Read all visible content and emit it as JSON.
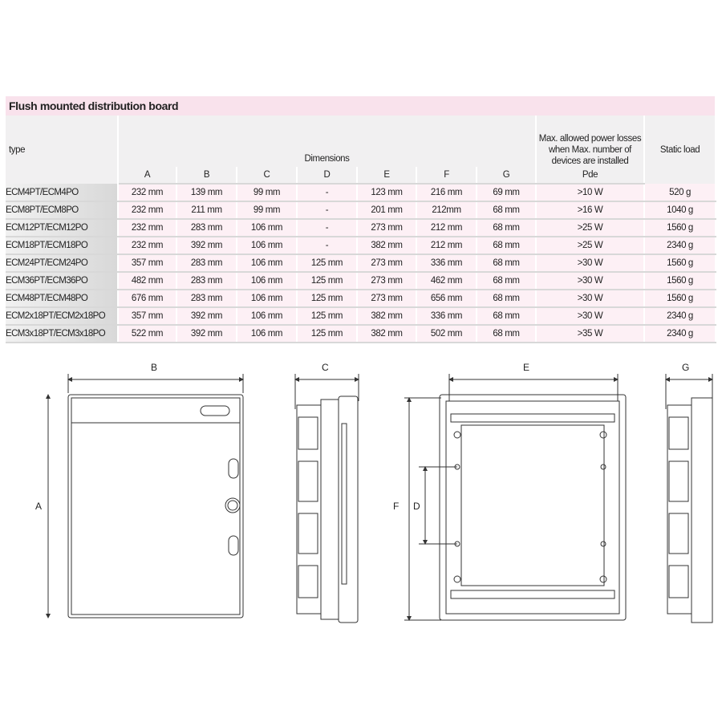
{
  "title": "Flush mounted distribution board",
  "headers": {
    "type": "type",
    "dimensions": "Dimensions",
    "cols": [
      "A",
      "B",
      "C",
      "D",
      "E",
      "F",
      "G"
    ],
    "power": "Max. allowed power losses when Max. number of devices are installed",
    "pde": "Pde",
    "static": "Static load"
  },
  "rows": [
    [
      "ECM4PT/ECM4PO",
      "232 mm",
      "139 mm",
      "99 mm",
      "-",
      "123 mm",
      "216 mm",
      "69 mm",
      ">10 W",
      "520 g"
    ],
    [
      "ECM8PT/ECM8PO",
      "232 mm",
      "211 mm",
      "99 mm",
      "-",
      "201 mm",
      "212mm",
      "68 mm",
      ">16 W",
      "1040 g"
    ],
    [
      "ECM12PT/ECM12PO",
      "232 mm",
      "283 mm",
      "106 mm",
      "-",
      "273 mm",
      "212 mm",
      "68 mm",
      ">25 W",
      "1560 g"
    ],
    [
      "ECM18PT/ECM18PO",
      "232 mm",
      "392 mm",
      "106 mm",
      "-",
      "382 mm",
      "212 mm",
      "68 mm",
      ">25 W",
      "2340 g"
    ],
    [
      "ECM24PT/ECM24PO",
      "357 mm",
      "283 mm",
      "106 mm",
      "125 mm",
      "273 mm",
      "336 mm",
      "68 mm",
      ">30 W",
      "1560 g"
    ],
    [
      "ECM36PT/ECM36PO",
      "482 mm",
      "283 mm",
      "106 mm",
      "125 mm",
      "273 mm",
      "462 mm",
      "68 mm",
      ">30 W",
      "1560 g"
    ],
    [
      "ECM48PT/ECM48PO",
      "676 mm",
      "283 mm",
      "106 mm",
      "125 mm",
      "273 mm",
      "656 mm",
      "68 mm",
      ">30 W",
      "1560 g"
    ],
    [
      "ECM2x18PT/ECM2x18PO",
      "357 mm",
      "392 mm",
      "106 mm",
      "125 mm",
      "382 mm",
      "336 mm",
      "68 mm",
      ">30 W",
      "2340 g"
    ],
    [
      "ECM3x18PT/ECM3x18PO",
      "522 mm",
      "392 mm",
      "106 mm",
      "125 mm",
      "382 mm",
      "502 mm",
      "68 mm",
      ">35 W",
      "2340 g"
    ]
  ],
  "drawing_labels": {
    "A": "A",
    "B": "B",
    "C": "C",
    "D": "D",
    "E": "E",
    "F": "F",
    "G": "G"
  },
  "colors": {
    "title_bg": "#f9e2ec",
    "row_bg": "#fdf0f5",
    "header_bg": "#f1f0f1"
  }
}
